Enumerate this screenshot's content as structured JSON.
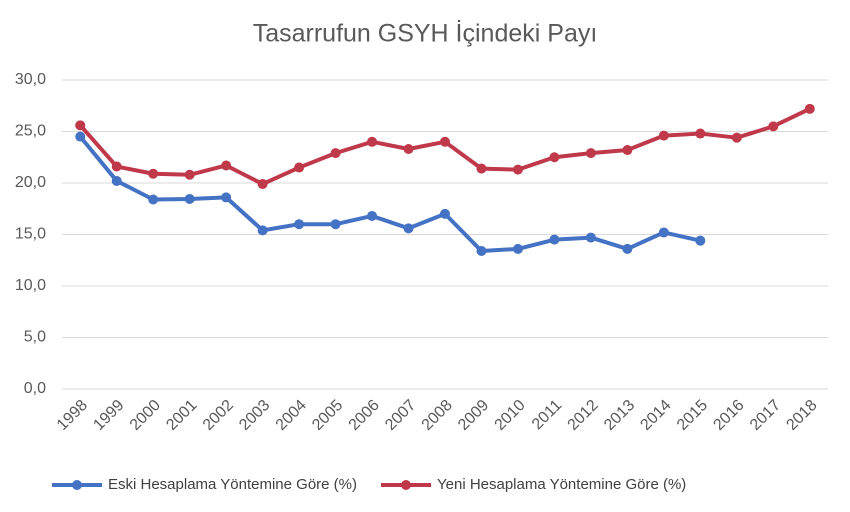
{
  "chart_data": {
    "type": "line",
    "title": "Tasarrufun GSYH İçindeki Payı",
    "categories": [
      "1998",
      "1999",
      "2000",
      "2001",
      "2002",
      "2003",
      "2004",
      "2005",
      "2006",
      "2007",
      "2008",
      "2009",
      "2010",
      "2011",
      "2012",
      "2013",
      "2014",
      "2015",
      "2016",
      "2017",
      "2018"
    ],
    "series": [
      {
        "name": "Eski Hesaplama Yöntemine Göre (%)",
        "color": "#4472c4",
        "values": [
          24.5,
          20.2,
          18.4,
          18.45,
          18.6,
          15.4,
          16.0,
          16.0,
          16.8,
          15.6,
          17.0,
          13.4,
          13.6,
          14.5,
          14.7,
          13.6,
          15.2,
          14.4,
          null,
          null,
          null
        ]
      },
      {
        "name": "Yeni Hesaplama Yöntemine Göre (%)",
        "color": "#c0394b",
        "values": [
          25.6,
          21.6,
          20.9,
          20.8,
          21.7,
          19.9,
          21.5,
          22.9,
          24.0,
          23.3,
          24.0,
          21.4,
          21.3,
          22.5,
          22.9,
          23.2,
          24.6,
          24.8,
          24.4,
          25.5,
          27.2
        ]
      }
    ],
    "ylim": [
      0,
      30
    ],
    "yticks": [
      {
        "value": 0,
        "label": "0,0"
      },
      {
        "value": 5,
        "label": "5,0"
      },
      {
        "value": 10,
        "label": "10,0"
      },
      {
        "value": 15,
        "label": "15,0"
      },
      {
        "value": 20,
        "label": "20,0"
      },
      {
        "value": 25,
        "label": "25,0"
      },
      {
        "value": 30,
        "label": "30,0"
      }
    ],
    "grid": true,
    "legend": "bottom"
  }
}
